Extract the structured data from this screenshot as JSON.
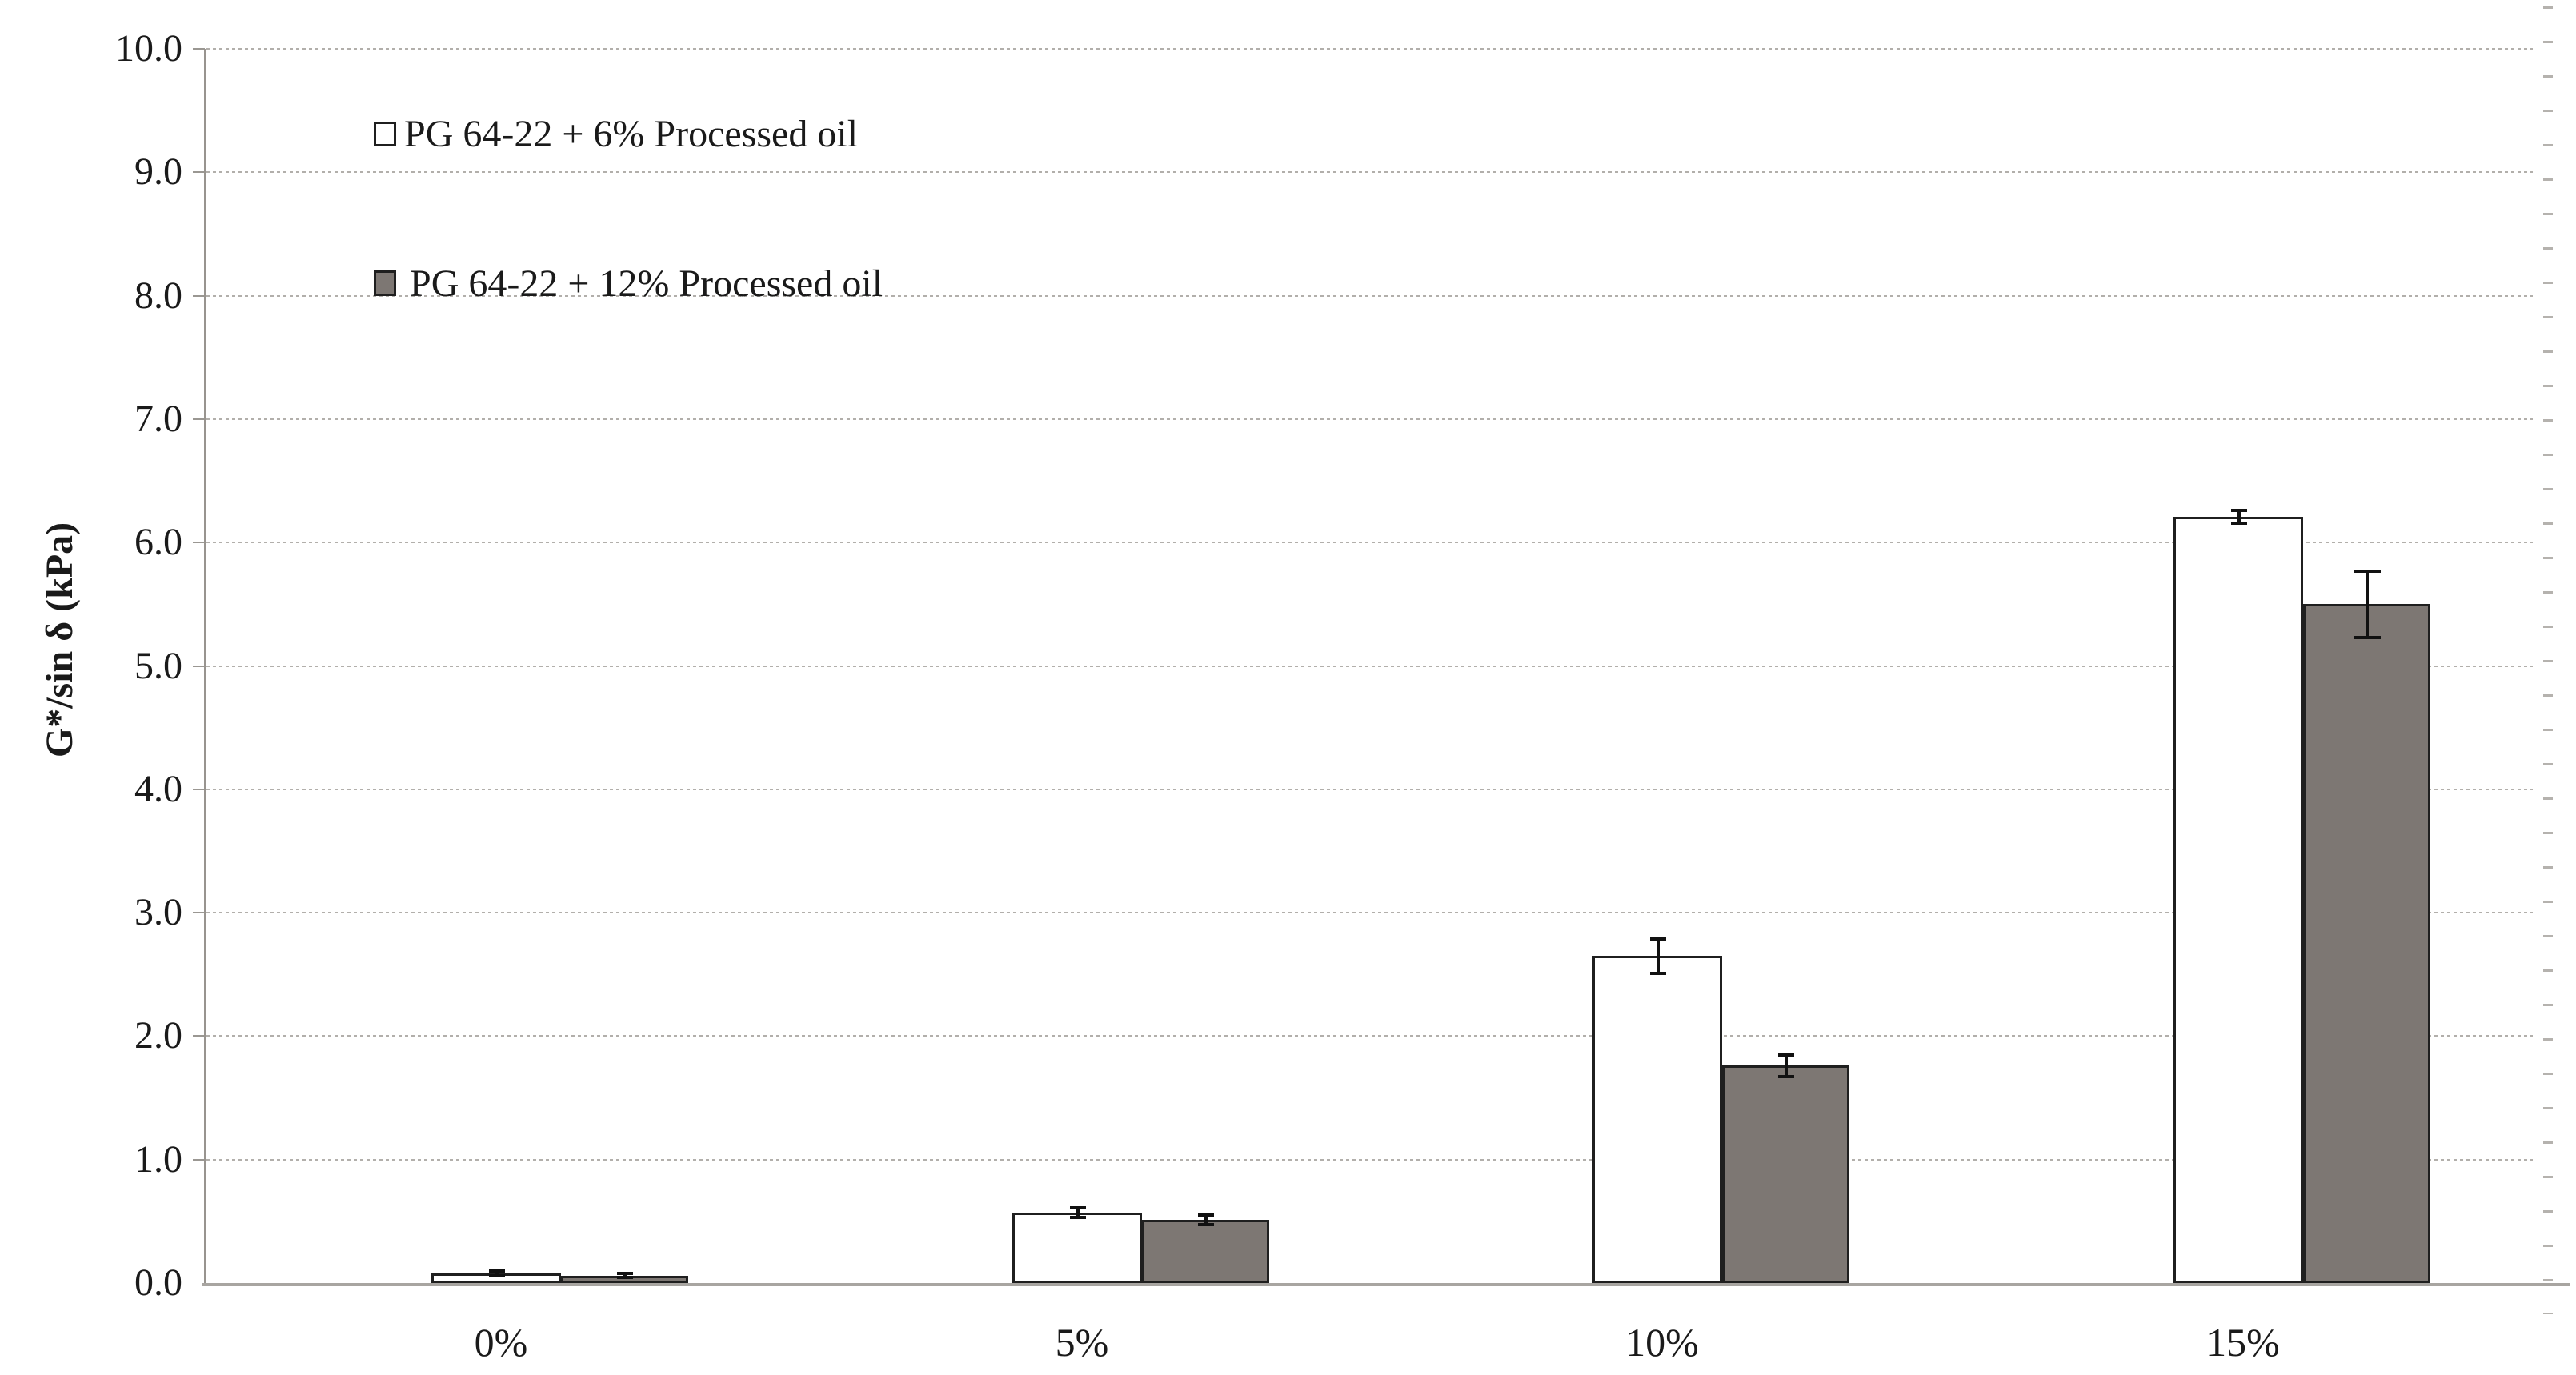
{
  "chart_data": {
    "type": "bar",
    "title": "",
    "categories": [
      "0%",
      "5%",
      "10%",
      "15%"
    ],
    "series": [
      {
        "name": "PG 64-22 + 6% Processed oil",
        "fill": "#ffffff",
        "values": [
          0.08,
          0.57,
          2.65,
          6.21
        ],
        "errors": [
          0.02,
          0.04,
          0.14,
          0.05
        ]
      },
      {
        "name": "PG 64-22 + 12% Processed oil",
        "fill": "#7d7773",
        "values": [
          0.06,
          0.51,
          1.76,
          5.5
        ],
        "errors": [
          0.015,
          0.04,
          0.09,
          0.27
        ]
      }
    ],
    "xlabel": "",
    "ylabel": "G*/sin δ (kPa)",
    "ylim": [
      0,
      10
    ],
    "ytick_step": 1.0,
    "ytick_labels": [
      "0.0",
      "1.0",
      "2.0",
      "3.0",
      "4.0",
      "5.0",
      "6.0",
      "7.0",
      "8.0",
      "9.0",
      "10.0"
    ],
    "grid": "horizontal-dotted",
    "error_bars": true,
    "legend_position": "inside-top-left"
  },
  "legend": {
    "items": [
      {
        "label": "PG 64-22 + 6% Processed oil",
        "swatch": "open-square"
      },
      {
        "label": "PG 64-22 + 12% Processed oil",
        "swatch": "filled-gray-square"
      }
    ]
  },
  "colors": {
    "bar_border": "#1f1f1f",
    "gray_fill": "#7d7773",
    "white_fill": "#ffffff",
    "gridline": "#b2afab",
    "axis_line": "#98948f",
    "baseline": "#a8a5a1",
    "text": "#1a1a1a",
    "error_bar": "#111111"
  }
}
